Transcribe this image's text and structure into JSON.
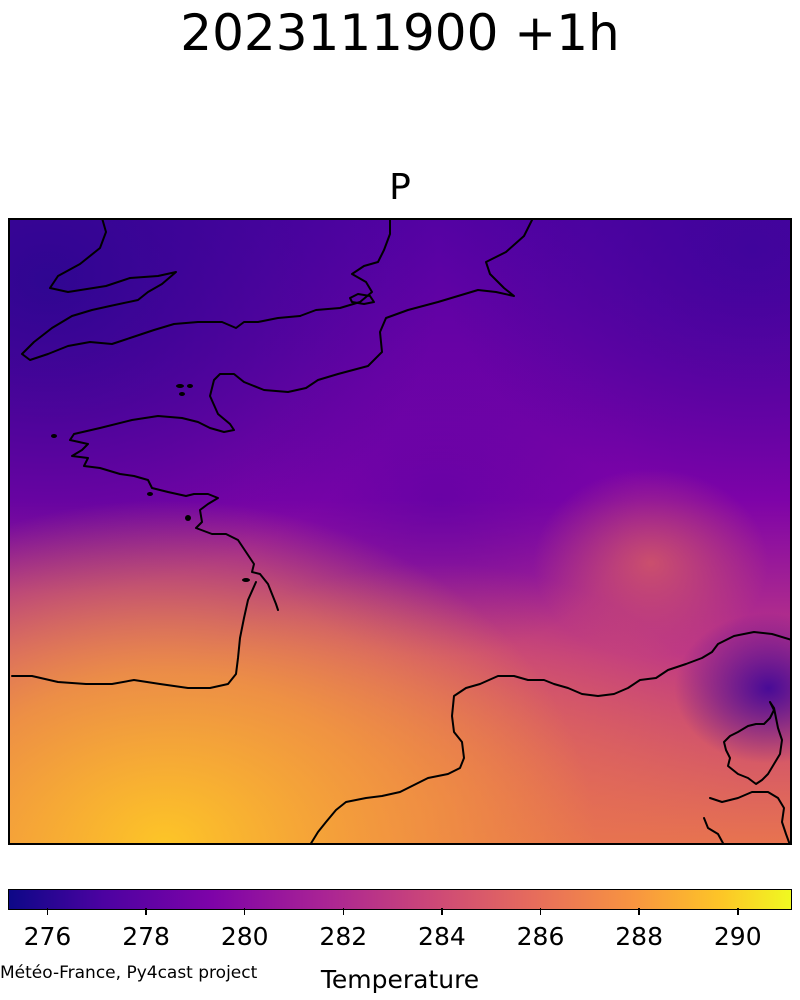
{
  "title": "2023111900 +1h",
  "panel": {
    "title": "P"
  },
  "map": {
    "field": "temperature",
    "colormap": "plasma",
    "land_features": [
      "england-coast",
      "brittany-peninsula",
      "channel-islands",
      "france-atlantic-coast",
      "pyrenees-border",
      "mediterranean-coast",
      "corsica",
      "sardinia"
    ]
  },
  "colorbar": {
    "label": "Temperature",
    "range": [
      275.2,
      291.1
    ],
    "ticks": [
      "276",
      "278",
      "280",
      "282",
      "284",
      "286",
      "288",
      "290"
    ],
    "tick_values": [
      276,
      278,
      280,
      282,
      284,
      286,
      288,
      290
    ],
    "colors": {
      "low": "#0d0887",
      "high": "#f0f921"
    }
  },
  "credit": "Météo-France, Py4cast project"
}
